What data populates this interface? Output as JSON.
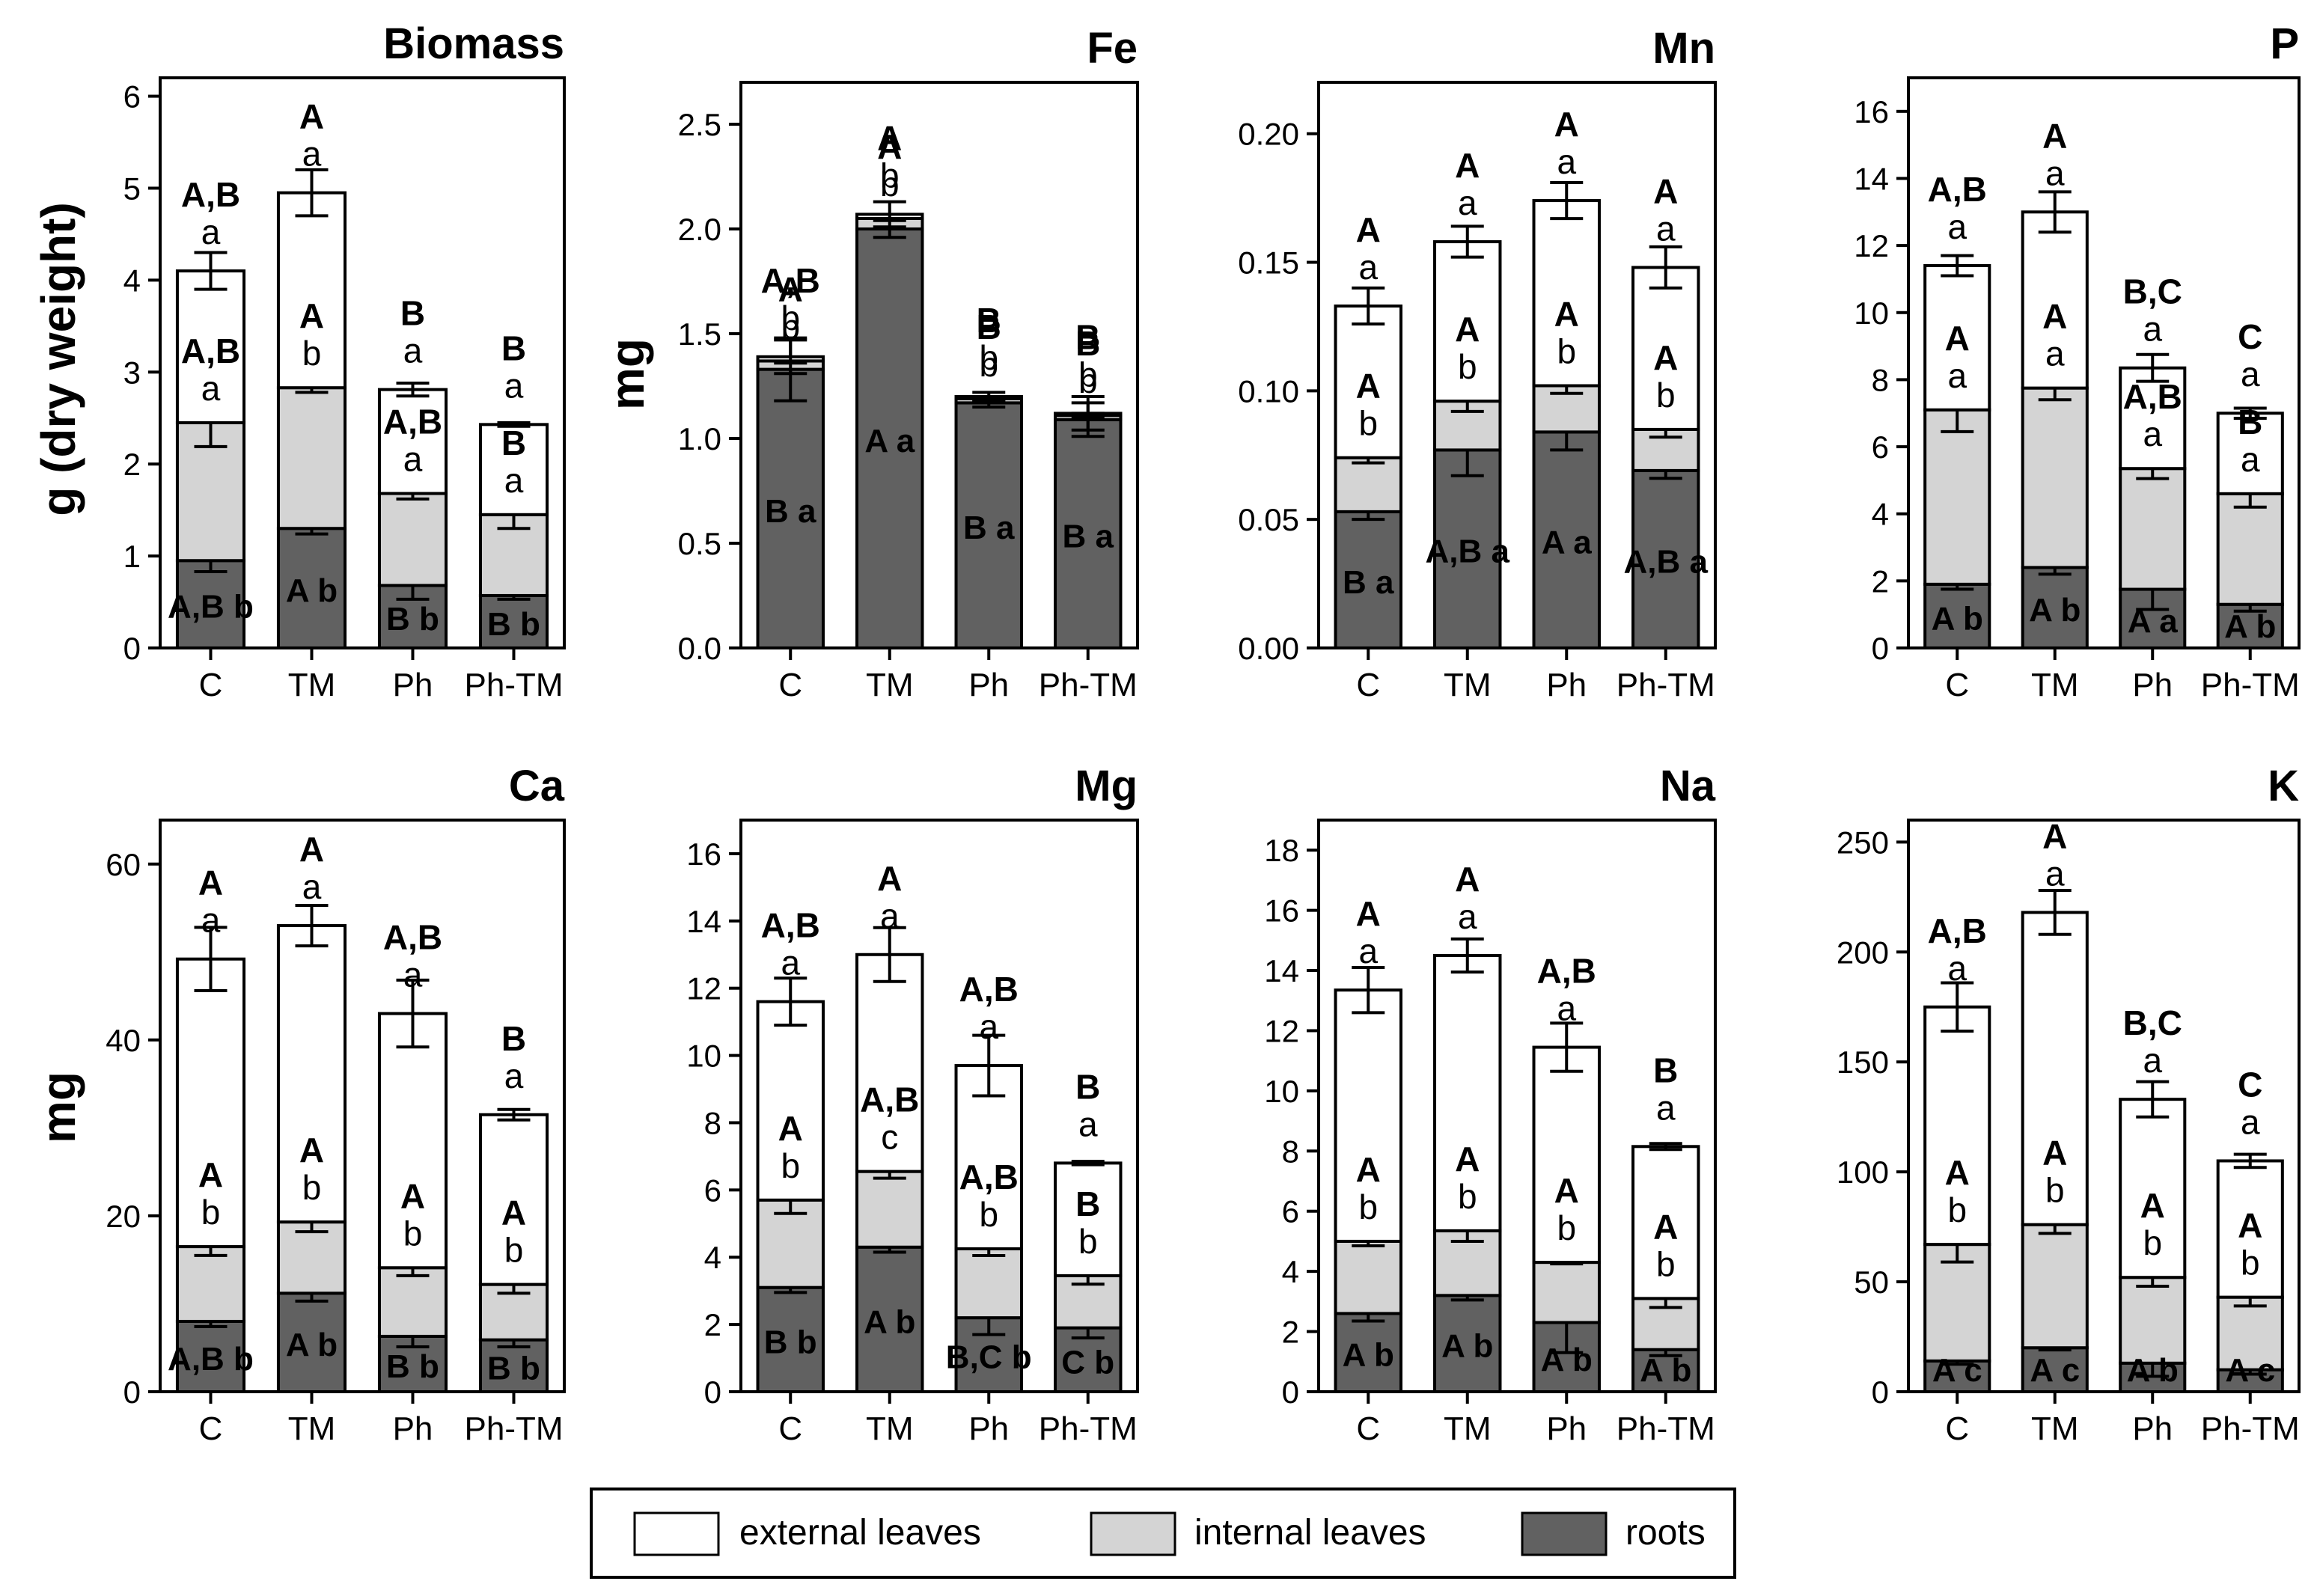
{
  "figure": {
    "categories": [
      "C",
      "TM",
      "Ph",
      "Ph-TM"
    ],
    "legend": {
      "items": [
        {
          "label": "external leaves",
          "color": "#ffffff"
        },
        {
          "label": "internal leaves",
          "color": "#d4d4d4"
        },
        {
          "label": "roots",
          "color": "#616161"
        }
      ]
    },
    "y_labels": {
      "top": "g (dry weight)",
      "top_small": "mg",
      "bottom": "mg"
    }
  },
  "chart_data": [
    {
      "type": "bar",
      "stacked": true,
      "title": "Biomass",
      "categories": [
        "C",
        "TM",
        "Ph",
        "Ph-TM"
      ],
      "ylabel": "g (dry weight)",
      "ylim": [
        0,
        6.2
      ],
      "yticks": [
        0,
        1,
        2,
        3,
        4,
        5,
        6
      ],
      "ytick_labels": [
        "0",
        "1",
        "2",
        "3",
        "4",
        "5",
        "6"
      ],
      "series": [
        {
          "name": "roots",
          "values": [
            0.95,
            1.3,
            0.68,
            0.57
          ],
          "errors": [
            0.12,
            0.06,
            0.15,
            0.04
          ]
        },
        {
          "name": "internal leaves",
          "values": [
            1.5,
            1.53,
            1.0,
            0.88
          ],
          "errors": [
            0.26,
            0.05,
            0.06,
            0.15
          ]
        },
        {
          "name": "external leaves",
          "values": [
            1.65,
            2.12,
            1.13,
            0.98
          ],
          "errors": [
            0.2,
            0.25,
            0.07,
            0.02
          ]
        }
      ],
      "annotations": [
        [
          [
            "A,B",
            "a"
          ],
          [
            "A,B",
            "a"
          ],
          [
            "A,B",
            "b"
          ]
        ],
        [
          [
            "A",
            "a"
          ],
          [
            "A",
            "b"
          ],
          [
            "A",
            "b"
          ]
        ],
        [
          [
            "B",
            "a"
          ],
          [
            "A,B",
            "a"
          ],
          [
            "B",
            "b"
          ]
        ],
        [
          [
            "B",
            "a"
          ],
          [
            "B",
            "a"
          ],
          [
            "B",
            "b"
          ]
        ]
      ]
    },
    {
      "type": "bar",
      "stacked": true,
      "title": "Fe",
      "categories": [
        "C",
        "TM",
        "Ph",
        "Ph-TM"
      ],
      "ylabel": "mg",
      "ylim": [
        0,
        2.7
      ],
      "yticks": [
        0,
        0.5,
        1,
        1.5,
        2,
        2.5
      ],
      "ytick_labels": [
        "0.0",
        "0.5",
        "1.0",
        "1.5",
        "2.0",
        "2.5"
      ],
      "series": [
        {
          "name": "roots",
          "values": [
            1.33,
            2.0,
            1.17,
            1.09
          ],
          "errors": [
            0.15,
            0.04,
            0.02,
            0.08
          ]
        },
        {
          "name": "internal leaves",
          "values": [
            0.04,
            0.05,
            0.02,
            0.02
          ],
          "errors": [
            0.01,
            0.01,
            0.01,
            0.01
          ]
        },
        {
          "name": "external leaves",
          "values": [
            0.02,
            0.02,
            0.01,
            0.01
          ],
          "errors": [
            0.08,
            0.06,
            0.02,
            0.08
          ]
        }
      ],
      "annotations": [
        [
          [
            "A,B",
            "b"
          ],
          [
            "A",
            "b"
          ],
          [
            "B",
            "a"
          ]
        ],
        [
          [
            "A",
            "b"
          ],
          [
            "A",
            "b"
          ],
          [
            "A",
            "a"
          ]
        ],
        [
          [
            "B",
            "b"
          ],
          [
            "B",
            "b"
          ],
          [
            "B",
            "a"
          ]
        ],
        [
          [
            "B",
            "b"
          ],
          [
            "B",
            "b"
          ],
          [
            "B",
            "a"
          ]
        ]
      ]
    },
    {
      "type": "bar",
      "stacked": true,
      "title": "Mn",
      "categories": [
        "C",
        "TM",
        "Ph",
        "Ph-TM"
      ],
      "ylabel": "mg",
      "ylim": [
        0,
        0.22
      ],
      "yticks": [
        0,
        0.05,
        0.1,
        0.15,
        0.2
      ],
      "ytick_labels": [
        "0.00",
        "0.05",
        "0.10",
        "0.15",
        "0.20"
      ],
      "series": [
        {
          "name": "roots",
          "values": [
            0.053,
            0.077,
            0.084,
            0.069
          ],
          "errors": [
            0.003,
            0.01,
            0.007,
            0.003
          ]
        },
        {
          "name": "internal leaves",
          "values": [
            0.021,
            0.019,
            0.018,
            0.016
          ],
          "errors": [
            0.002,
            0.004,
            0.003,
            0.003
          ]
        },
        {
          "name": "external leaves",
          "values": [
            0.059,
            0.062,
            0.072,
            0.063
          ],
          "errors": [
            0.007,
            0.006,
            0.007,
            0.008
          ]
        }
      ],
      "annotations": [
        [
          [
            "A",
            "a"
          ],
          [
            "A",
            "b"
          ],
          [
            "B",
            "a"
          ]
        ],
        [
          [
            "A",
            "a"
          ],
          [
            "A",
            "b"
          ],
          [
            "A,B",
            "a"
          ]
        ],
        [
          [
            "A",
            "a"
          ],
          [
            "A",
            "b"
          ],
          [
            "A",
            "a"
          ]
        ],
        [
          [
            "A",
            "a"
          ],
          [
            "A",
            "b"
          ],
          [
            "A,B",
            "a"
          ]
        ]
      ]
    },
    {
      "type": "bar",
      "stacked": true,
      "title": "P",
      "categories": [
        "C",
        "TM",
        "Ph",
        "Ph-TM"
      ],
      "ylabel": "mg",
      "ylim": [
        0,
        17
      ],
      "yticks": [
        0,
        2,
        4,
        6,
        8,
        10,
        12,
        14,
        16
      ],
      "ytick_labels": [
        "0",
        "2",
        "4",
        "6",
        "8",
        "10",
        "12",
        "14",
        "16"
      ],
      "series": [
        {
          "name": "roots",
          "values": [
            1.9,
            2.4,
            1.75,
            1.3
          ],
          "errors": [
            0.15,
            0.2,
            0.6,
            0.2
          ]
        },
        {
          "name": "internal leaves",
          "values": [
            5.2,
            5.35,
            3.6,
            3.3
          ],
          "errors": [
            0.65,
            0.35,
            0.3,
            0.4
          ]
        },
        {
          "name": "external leaves",
          "values": [
            4.3,
            5.25,
            3.0,
            2.4
          ],
          "errors": [
            0.3,
            0.6,
            0.4,
            0.15
          ]
        }
      ],
      "annotations": [
        [
          [
            "A,B",
            "a"
          ],
          [
            "A",
            "a"
          ],
          [
            "A",
            "b"
          ]
        ],
        [
          [
            "A",
            "a"
          ],
          [
            "A",
            "a"
          ],
          [
            "A",
            "b"
          ]
        ],
        [
          [
            "B,C",
            "a"
          ],
          [
            "A,B",
            "a"
          ],
          [
            "A",
            "a"
          ]
        ],
        [
          [
            "C",
            "a"
          ],
          [
            "B",
            "a"
          ],
          [
            "A",
            "b"
          ]
        ]
      ]
    },
    {
      "type": "bar",
      "stacked": true,
      "title": "Ca",
      "categories": [
        "C",
        "TM",
        "Ph",
        "Ph-TM"
      ],
      "ylabel": "mg",
      "ylim": [
        0,
        65
      ],
      "yticks": [
        0,
        20,
        40,
        60
      ],
      "ytick_labels": [
        "0",
        "20",
        "40",
        "60"
      ],
      "series": [
        {
          "name": "roots",
          "values": [
            8.0,
            11.2,
            6.3,
            5.9
          ],
          "errors": [
            0.6,
            0.9,
            1.2,
            0.8
          ]
        },
        {
          "name": "internal leaves",
          "values": [
            8.5,
            8.1,
            7.8,
            6.3
          ],
          "errors": [
            1.0,
            1.1,
            0.9,
            1.0
          ]
        },
        {
          "name": "external leaves",
          "values": [
            32.7,
            33.7,
            28.9,
            19.3
          ],
          "errors": [
            3.6,
            2.3,
            3.8,
            0.6
          ]
        }
      ],
      "annotations": [
        [
          [
            "A",
            "a"
          ],
          [
            "A",
            "b"
          ],
          [
            "A,B",
            "b"
          ]
        ],
        [
          [
            "A",
            "a"
          ],
          [
            "A",
            "b"
          ],
          [
            "A",
            "b"
          ]
        ],
        [
          [
            "A,B",
            "a"
          ],
          [
            "A",
            "b"
          ],
          [
            "B",
            "b"
          ]
        ],
        [
          [
            "B",
            "a"
          ],
          [
            "A",
            "b"
          ],
          [
            "B",
            "b"
          ]
        ]
      ]
    },
    {
      "type": "bar",
      "stacked": true,
      "title": "Mg",
      "categories": [
        "C",
        "TM",
        "Ph",
        "Ph-TM"
      ],
      "ylabel": "mg",
      "ylim": [
        0,
        17
      ],
      "yticks": [
        0,
        2,
        4,
        6,
        8,
        10,
        12,
        14,
        16
      ],
      "ytick_labels": [
        "0",
        "2",
        "4",
        "6",
        "8",
        "10",
        "12",
        "14",
        "16"
      ],
      "series": [
        {
          "name": "roots",
          "values": [
            3.1,
            4.3,
            2.2,
            1.9
          ],
          "errors": [
            0.15,
            0.15,
            0.5,
            0.3
          ]
        },
        {
          "name": "internal leaves",
          "values": [
            2.6,
            2.25,
            2.05,
            1.55
          ],
          "errors": [
            0.4,
            0.2,
            0.2,
            0.25
          ]
        },
        {
          "name": "external leaves",
          "values": [
            5.9,
            6.45,
            5.45,
            3.35
          ],
          "errors": [
            0.7,
            0.8,
            0.9,
            0.05
          ]
        }
      ],
      "annotations": [
        [
          [
            "A,B",
            "a"
          ],
          [
            "A",
            "b"
          ],
          [
            "B",
            "b"
          ]
        ],
        [
          [
            "A",
            "a"
          ],
          [
            "A,B",
            "c"
          ],
          [
            "A",
            "b"
          ]
        ],
        [
          [
            "A,B",
            "a"
          ],
          [
            "A,B",
            "b"
          ],
          [
            "B,C",
            "b"
          ]
        ],
        [
          [
            "B",
            "a"
          ],
          [
            "B",
            "b"
          ],
          [
            "C",
            "b"
          ]
        ]
      ]
    },
    {
      "type": "bar",
      "stacked": true,
      "title": "Na",
      "categories": [
        "C",
        "TM",
        "Ph",
        "Ph-TM"
      ],
      "ylabel": "mg",
      "ylim": [
        0,
        19
      ],
      "yticks": [
        0,
        2,
        4,
        6,
        8,
        10,
        12,
        14,
        16,
        18
      ],
      "ytick_labels": [
        "0",
        "2",
        "4",
        "6",
        "8",
        "10",
        "12",
        "14",
        "16",
        "18"
      ],
      "series": [
        {
          "name": "roots",
          "values": [
            2.6,
            3.2,
            2.3,
            1.4
          ],
          "errors": [
            0.25,
            0.15,
            1.0,
            0.2
          ]
        },
        {
          "name": "internal leaves",
          "values": [
            2.4,
            2.15,
            2.0,
            1.7
          ],
          "errors": [
            0.15,
            0.35,
            0.05,
            0.3
          ]
        },
        {
          "name": "external leaves",
          "values": [
            8.35,
            9.15,
            7.15,
            5.05
          ],
          "errors": [
            0.75,
            0.55,
            0.8,
            0.1
          ]
        }
      ],
      "annotations": [
        [
          [
            "A",
            "a"
          ],
          [
            "A",
            "b"
          ],
          [
            "A",
            "b"
          ]
        ],
        [
          [
            "A",
            "a"
          ],
          [
            "A",
            "b"
          ],
          [
            "A",
            "b"
          ]
        ],
        [
          [
            "A,B",
            "a"
          ],
          [
            "A",
            "b"
          ],
          [
            "A",
            "b"
          ]
        ],
        [
          [
            "B",
            "a"
          ],
          [
            "A",
            "b"
          ],
          [
            "A",
            "b"
          ]
        ]
      ]
    },
    {
      "type": "bar",
      "stacked": true,
      "title": "K",
      "categories": [
        "C",
        "TM",
        "Ph",
        "Ph-TM"
      ],
      "ylabel": "mg",
      "ylim": [
        0,
        260
      ],
      "yticks": [
        0,
        50,
        100,
        150,
        200,
        250
      ],
      "ytick_labels": [
        "0",
        "50",
        "100",
        "150",
        "200",
        "250"
      ],
      "series": [
        {
          "name": "roots",
          "values": [
            14,
            20,
            13,
            10
          ],
          "errors": [
            1.5,
            1,
            6,
            2
          ]
        },
        {
          "name": "internal leaves",
          "values": [
            53,
            56,
            39,
            33
          ],
          "errors": [
            8,
            4,
            4,
            4
          ]
        },
        {
          "name": "external leaves",
          "values": [
            108,
            142,
            81,
            62
          ],
          "errors": [
            11,
            10,
            8,
            3
          ]
        }
      ],
      "annotations": [
        [
          [
            "A,B",
            "a"
          ],
          [
            "A",
            "b"
          ],
          [
            "A",
            "c"
          ]
        ],
        [
          [
            "A",
            "a"
          ],
          [
            "A",
            "b"
          ],
          [
            "A",
            "c"
          ]
        ],
        [
          [
            "B,C",
            "a"
          ],
          [
            "A",
            "b"
          ],
          [
            "A",
            "b"
          ]
        ],
        [
          [
            "C",
            "a"
          ],
          [
            "A",
            "b"
          ],
          [
            "A",
            "c"
          ]
        ]
      ]
    }
  ]
}
